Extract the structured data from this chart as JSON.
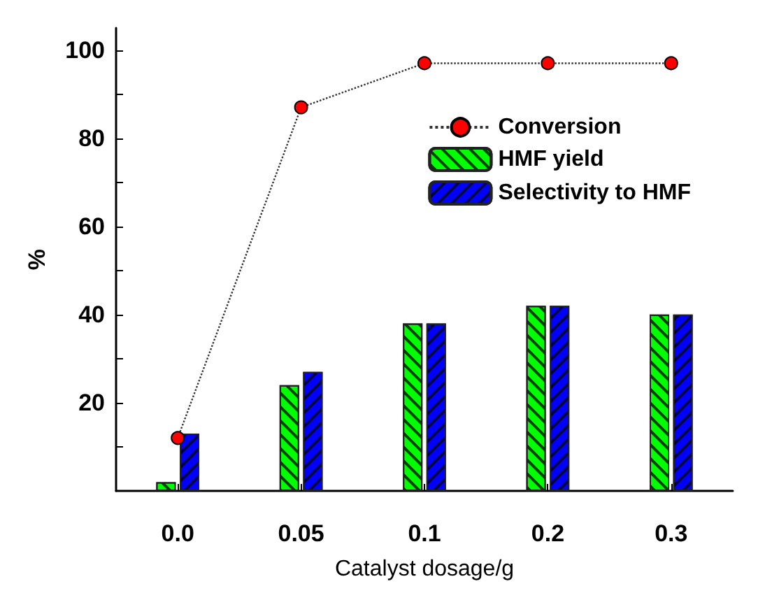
{
  "chart_data": {
    "type": "bar",
    "xlabel": "Catalyst dosage/g",
    "ylabel": "%",
    "categories": [
      "0.0",
      "0.05",
      "0.1",
      "0.2",
      "0.3"
    ],
    "series": [
      {
        "name": "Conversion",
        "type": "line",
        "color": "#ff0000",
        "values": [
          12,
          87,
          97,
          97,
          97
        ],
        "marker": "circle",
        "line_style": "dotted"
      },
      {
        "name": "HMF yield",
        "color": "#00ff00",
        "values": [
          2,
          24,
          38,
          42,
          40
        ]
      },
      {
        "name": "Selectivity to HMF",
        "color": "#0000ff",
        "values": [
          13,
          27,
          38,
          42,
          40
        ]
      }
    ],
    "ylim": [
      0,
      105
    ],
    "yticks": [
      {
        "value": 10,
        "label": null
      },
      20,
      {
        "value": 30,
        "label": null
      },
      40,
      {
        "value": 50,
        "label": null
      },
      60,
      {
        "value": 70,
        "label": null
      },
      80,
      {
        "value": 90,
        "label": null
      },
      100
    ],
    "grid": false,
    "legend": "top right"
  }
}
